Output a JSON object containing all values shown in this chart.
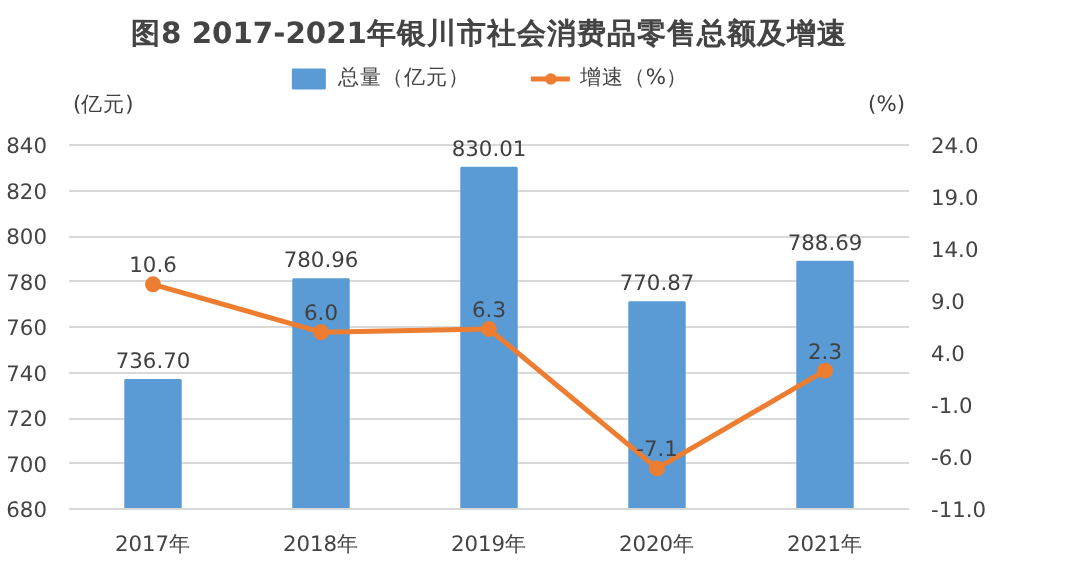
{
  "chart_data": {
    "type": "bar",
    "title": "图8 2017-2021年银川市社会消费品零售总额及增速",
    "ylabel": "(亿元)",
    "y2label": "(%)",
    "categories": [
      "2017年",
      "2018年",
      "2019年",
      "2020年",
      "2021年"
    ],
    "series": [
      {
        "name": "总量（亿元）",
        "color": "#5b9bd5",
        "values": [
          736.7,
          780.96,
          830.01,
          770.87,
          788.69
        ],
        "value_labels": [
          "736.70",
          "780.96",
          "830.01",
          "770.87",
          "788.69"
        ]
      },
      {
        "name": "增速（%）",
        "type": "line",
        "axis": "y2",
        "color": "#ed7d31",
        "marker": "circle",
        "values": [
          10.6,
          6.0,
          6.3,
          -7.1,
          2.3
        ],
        "value_labels": [
          "10.6",
          "6.0",
          "6.3",
          "-7.1",
          "2.3"
        ]
      }
    ],
    "ylim": [
      680,
      840
    ],
    "yticks": [
      680,
      700,
      720,
      740,
      760,
      780,
      800,
      820,
      840
    ],
    "y2lim": [
      -11,
      24
    ],
    "y2ticks": [
      {
        "value": 24,
        "label": "24.0"
      },
      {
        "value": 19,
        "label": "19.0"
      },
      {
        "value": 14,
        "label": "14.0"
      },
      {
        "value": 9,
        "label": "9.0"
      },
      {
        "value": 4,
        "label": "4.0"
      },
      {
        "value": -1,
        "label": "-1.0"
      },
      {
        "value": -6,
        "label": "-6.0"
      },
      {
        "value": -11,
        "label": "-11.0"
      }
    ],
    "grid": "y",
    "legend": "top"
  }
}
